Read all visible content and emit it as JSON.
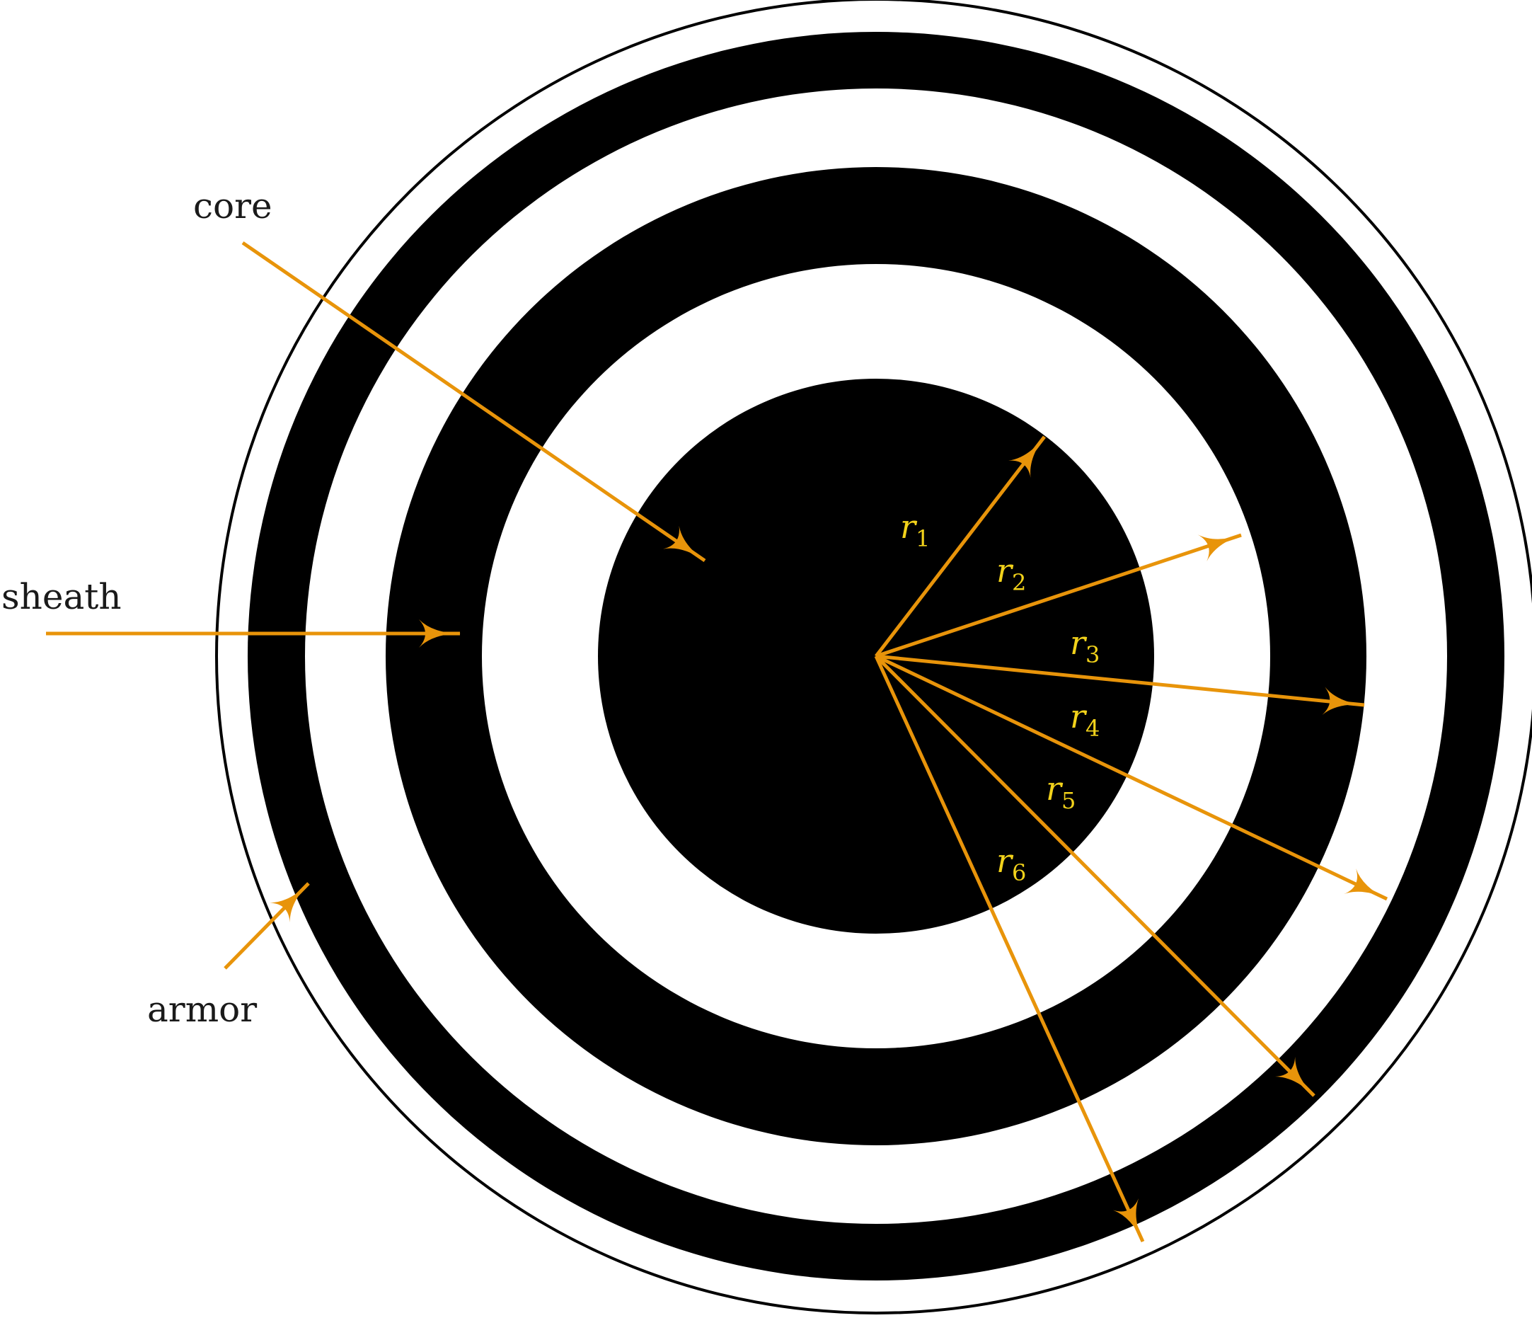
{
  "labels": {
    "core": "core",
    "sheath": "sheath",
    "armor": "armor"
  },
  "radii": [
    {
      "var": "r",
      "sub": "1"
    },
    {
      "var": "r",
      "sub": "2"
    },
    {
      "var": "r",
      "sub": "3"
    },
    {
      "var": "r",
      "sub": "4"
    },
    {
      "var": "r",
      "sub": "5"
    },
    {
      "var": "r",
      "sub": "6"
    }
  ],
  "colors": {
    "arrow": "#E8940A",
    "radius_label": "#F2D21B",
    "band": "#000000",
    "gap": "#ffffff",
    "text": "#1a1a1a"
  }
}
